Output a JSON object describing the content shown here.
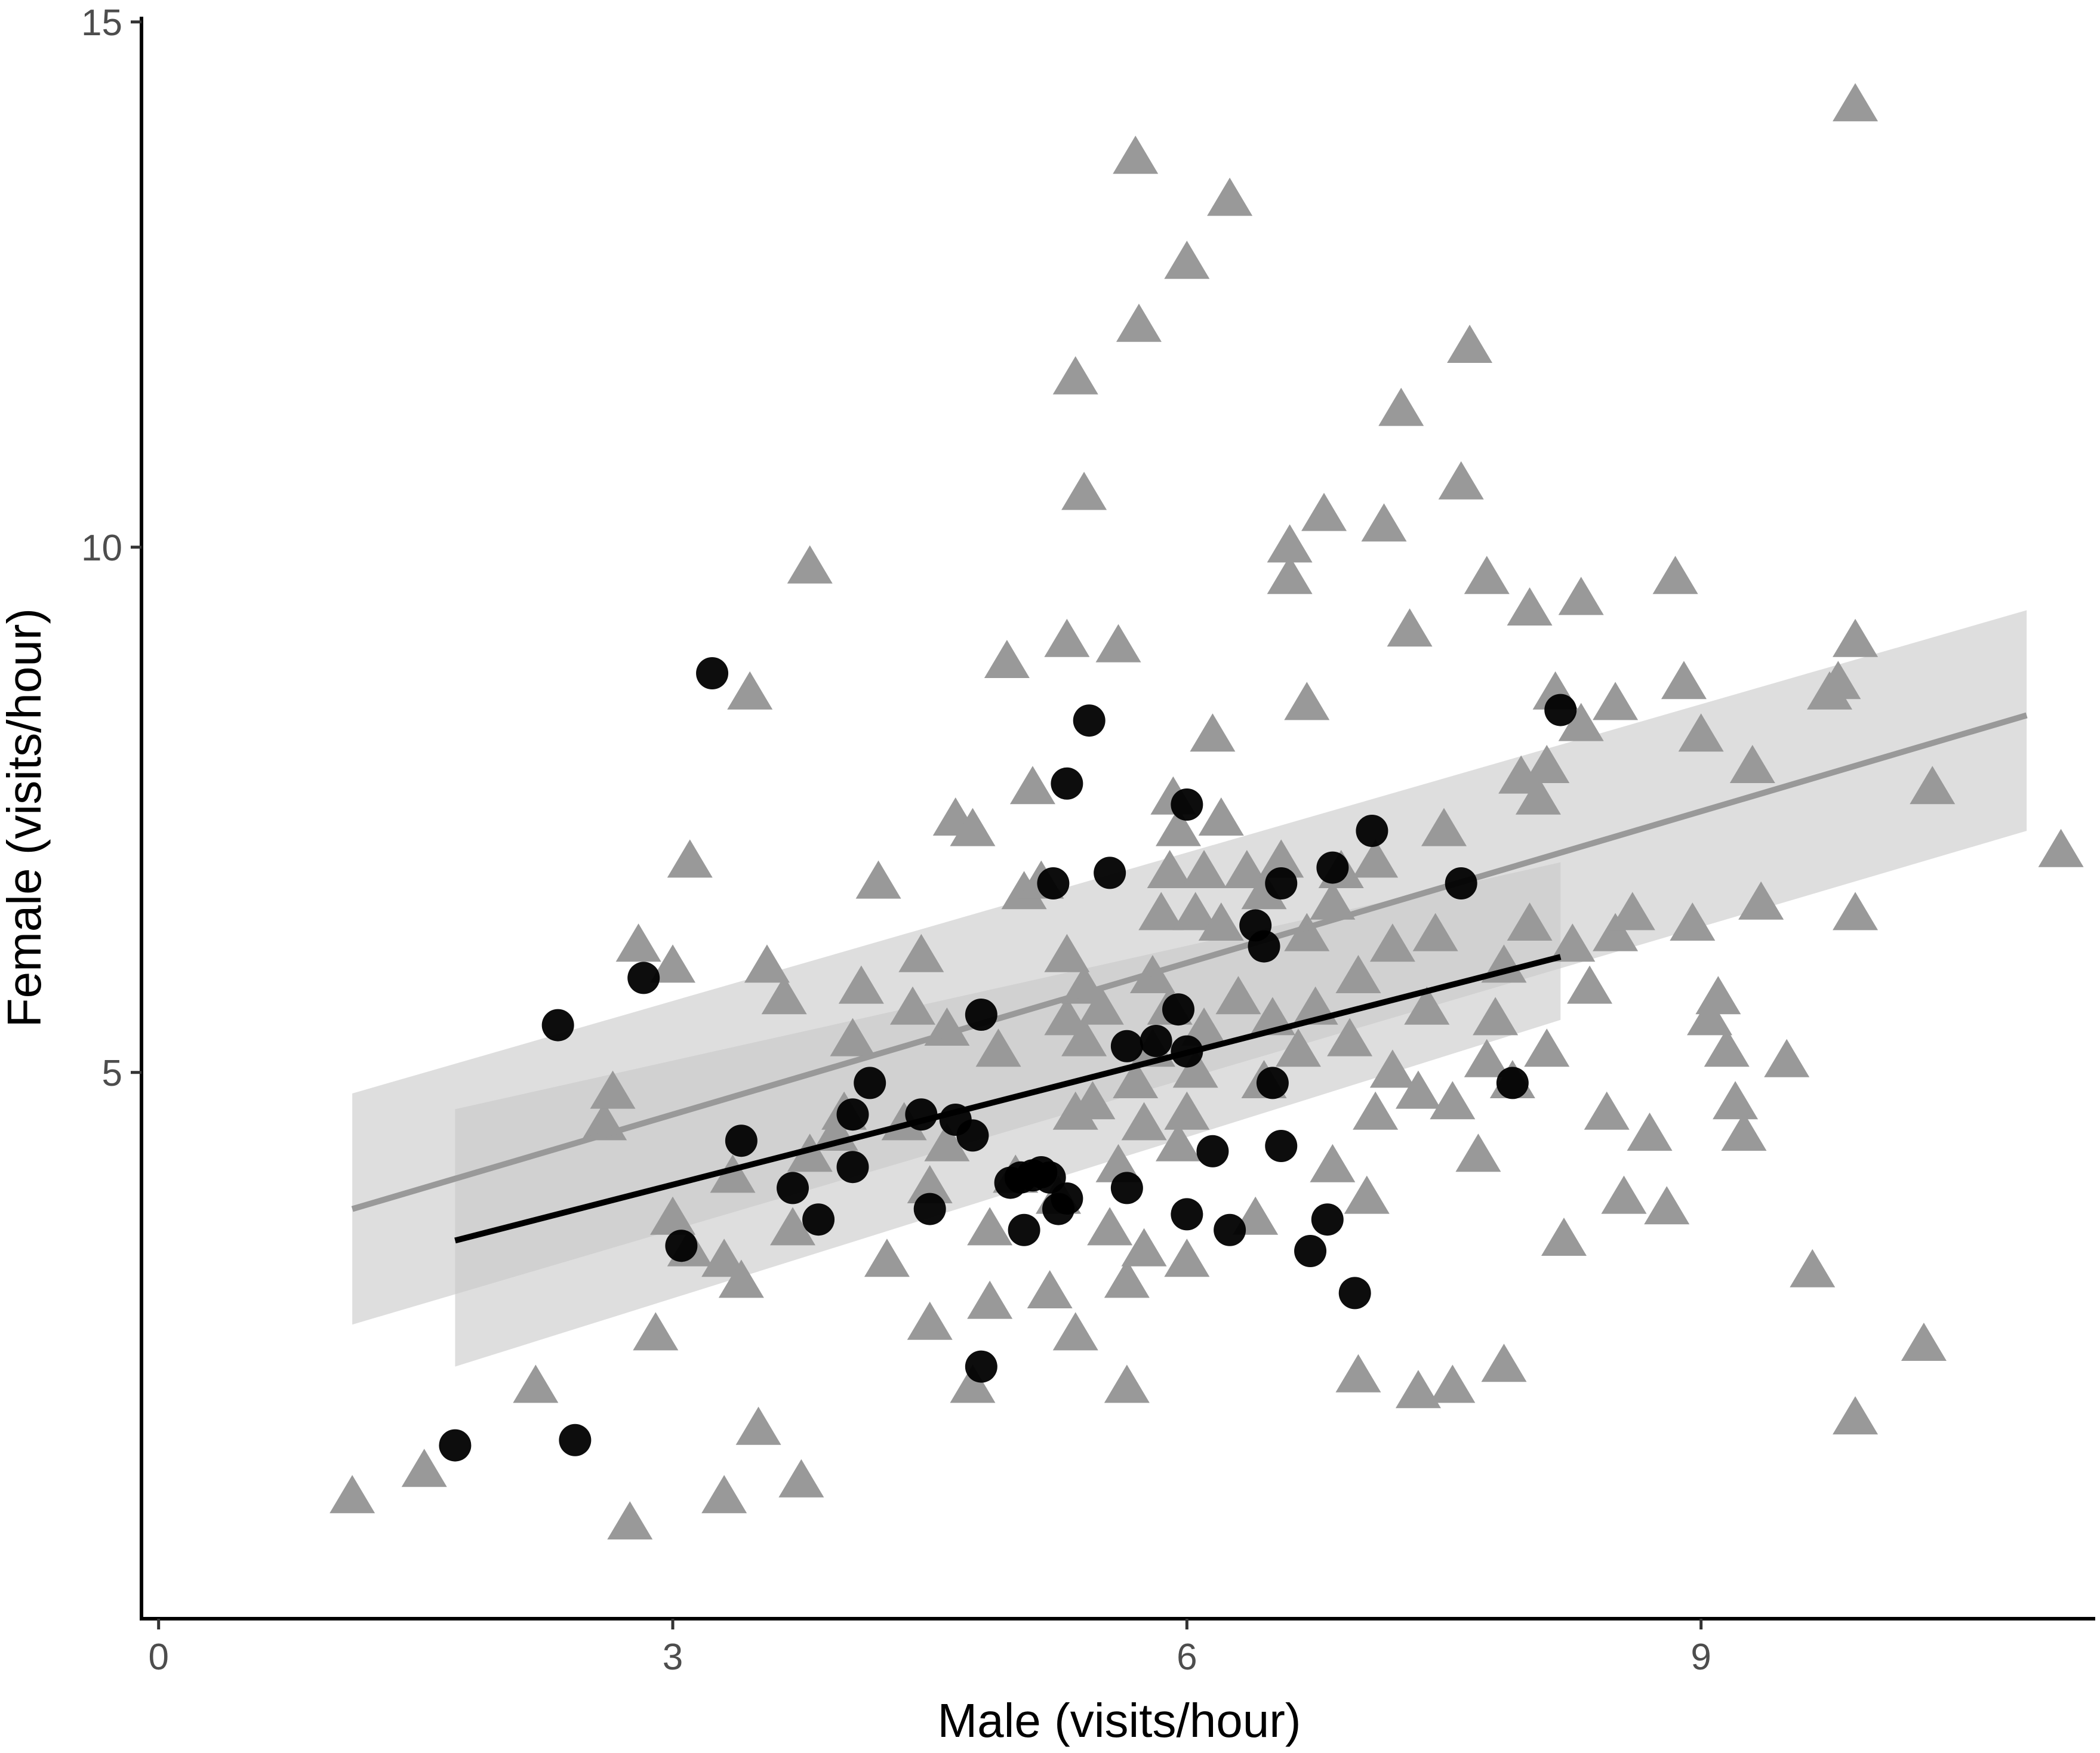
{
  "chart_data": {
    "type": "scatter",
    "title": "",
    "xlabel": "Male (visits/hour)",
    "ylabel": "Female (visits/hour)",
    "xlim": [
      -0.1,
      11.3
    ],
    "ylim": [
      -0.2,
      15.05
    ],
    "x_ticks": [
      0,
      3,
      6,
      9
    ],
    "y_ticks": [
      5,
      10,
      15
    ],
    "grid": false,
    "legend": "none",
    "colors": {
      "triangles": "#999999",
      "circles": "#000000",
      "triangle_fit": "#999999",
      "circle_fit": "#000000",
      "ribbon": "#c8c8c8"
    },
    "series": [
      {
        "marker": "triangle",
        "color": "#999999",
        "points": [
          [
            1.13,
            0.95
          ],
          [
            1.55,
            1.2
          ],
          [
            2.2,
            2.0
          ],
          [
            2.75,
            0.7
          ],
          [
            3.3,
            0.95
          ],
          [
            3.75,
            1.1
          ],
          [
            3.5,
            1.6
          ],
          [
            2.9,
            2.5
          ],
          [
            3.0,
            3.6
          ],
          [
            3.1,
            3.3
          ],
          [
            3.3,
            3.2
          ],
          [
            3.4,
            3.0
          ],
          [
            3.35,
            4.0
          ],
          [
            2.6,
            4.5
          ],
          [
            2.65,
            4.8
          ],
          [
            2.8,
            6.2
          ],
          [
            3.0,
            6.0
          ],
          [
            3.1,
            7.0
          ],
          [
            3.45,
            8.6
          ],
          [
            3.55,
            6.0
          ],
          [
            3.65,
            5.7
          ],
          [
            3.8,
            9.8
          ],
          [
            3.7,
            3.5
          ],
          [
            3.8,
            4.2
          ],
          [
            3.95,
            4.4
          ],
          [
            4.0,
            4.6
          ],
          [
            4.05,
            5.3
          ],
          [
            4.1,
            5.8
          ],
          [
            4.2,
            6.8
          ],
          [
            4.25,
            3.2
          ],
          [
            4.35,
            4.5
          ],
          [
            4.4,
            5.6
          ],
          [
            4.45,
            6.1
          ],
          [
            4.5,
            2.6
          ],
          [
            4.5,
            3.9
          ],
          [
            4.6,
            4.3
          ],
          [
            4.6,
            5.4
          ],
          [
            4.65,
            7.4
          ],
          [
            4.75,
            2.0
          ],
          [
            4.75,
            7.3
          ],
          [
            4.85,
            2.8
          ],
          [
            4.85,
            3.5
          ],
          [
            4.9,
            5.2
          ],
          [
            4.95,
            8.9
          ],
          [
            5.0,
            4.0
          ],
          [
            5.05,
            6.7
          ],
          [
            5.1,
            7.7
          ],
          [
            5.15,
            6.8
          ],
          [
            5.2,
            2.9
          ],
          [
            5.25,
            3.8
          ],
          [
            5.3,
            5.5
          ],
          [
            5.3,
            6.1
          ],
          [
            5.3,
            9.1
          ],
          [
            5.35,
            11.6
          ],
          [
            5.35,
            2.5
          ],
          [
            5.35,
            4.6
          ],
          [
            5.4,
            5.3
          ],
          [
            5.4,
            5.8
          ],
          [
            5.4,
            10.5
          ],
          [
            5.45,
            4.7
          ],
          [
            5.5,
            5.6
          ],
          [
            5.55,
            3.5
          ],
          [
            5.6,
            4.1
          ],
          [
            5.6,
            9.05
          ],
          [
            5.65,
            2.0
          ],
          [
            5.65,
            3.0
          ],
          [
            5.7,
            4.9
          ],
          [
            5.7,
            13.7
          ],
          [
            5.72,
            12.1
          ],
          [
            5.75,
            3.3
          ],
          [
            5.75,
            4.5
          ],
          [
            5.8,
            5.2
          ],
          [
            5.8,
            5.9
          ],
          [
            5.85,
            6.5
          ],
          [
            5.9,
            5.6
          ],
          [
            5.9,
            6.9
          ],
          [
            5.92,
            7.6
          ],
          [
            5.95,
            4.3
          ],
          [
            5.95,
            7.3
          ],
          [
            6.0,
            3.2
          ],
          [
            6.0,
            4.6
          ],
          [
            6.0,
            12.7
          ],
          [
            6.05,
            5.0
          ],
          [
            6.05,
            6.5
          ],
          [
            6.1,
            5.4
          ],
          [
            6.1,
            6.9
          ],
          [
            6.15,
            8.2
          ],
          [
            6.2,
            7.4
          ],
          [
            6.2,
            6.4
          ],
          [
            6.25,
            13.3
          ],
          [
            6.3,
            5.7
          ],
          [
            6.35,
            6.9
          ],
          [
            6.4,
            3.6
          ],
          [
            6.45,
            4.9
          ],
          [
            6.45,
            6.7
          ],
          [
            6.5,
            5.5
          ],
          [
            6.55,
            7.0
          ],
          [
            6.6,
            10.0
          ],
          [
            6.6,
            9.7
          ],
          [
            6.65,
            5.2
          ],
          [
            6.7,
            8.5
          ],
          [
            6.7,
            6.3
          ],
          [
            6.75,
            5.6
          ],
          [
            6.8,
            10.3
          ],
          [
            6.85,
            4.1
          ],
          [
            6.85,
            6.6
          ],
          [
            6.9,
            6.9
          ],
          [
            6.95,
            5.3
          ],
          [
            7.0,
            2.1
          ],
          [
            7.0,
            5.9
          ],
          [
            7.05,
            3.8
          ],
          [
            7.1,
            4.6
          ],
          [
            7.1,
            7.0
          ],
          [
            7.15,
            10.2
          ],
          [
            7.2,
            5.0
          ],
          [
            7.2,
            6.2
          ],
          [
            7.25,
            11.3
          ],
          [
            7.3,
            9.2
          ],
          [
            7.35,
            1.95
          ],
          [
            7.35,
            4.8
          ],
          [
            7.4,
            5.6
          ],
          [
            7.45,
            6.3
          ],
          [
            7.5,
            7.3
          ],
          [
            7.55,
            2.0
          ],
          [
            7.55,
            4.7
          ],
          [
            7.6,
            10.6
          ],
          [
            7.65,
            11.9
          ],
          [
            7.7,
            4.2
          ],
          [
            7.75,
            5.1
          ],
          [
            7.75,
            9.7
          ],
          [
            7.8,
            5.5
          ],
          [
            7.85,
            2.2
          ],
          [
            7.85,
            6.0
          ],
          [
            7.9,
            4.9
          ],
          [
            7.95,
            7.8
          ],
          [
            8.0,
            6.4
          ],
          [
            8.0,
            9.4
          ],
          [
            8.05,
            7.6
          ],
          [
            8.1,
            5.2
          ],
          [
            8.1,
            7.9
          ],
          [
            8.15,
            8.6
          ],
          [
            8.2,
            3.4
          ],
          [
            8.25,
            6.2
          ],
          [
            8.3,
            8.3
          ],
          [
            8.3,
            9.5
          ],
          [
            8.35,
            5.8
          ],
          [
            8.45,
            4.6
          ],
          [
            8.5,
            6.3
          ],
          [
            8.5,
            8.5
          ],
          [
            8.55,
            3.8
          ],
          [
            8.6,
            6.5
          ],
          [
            8.7,
            4.4
          ],
          [
            8.8,
            3.7
          ],
          [
            8.85,
            9.7
          ],
          [
            8.9,
            8.7
          ],
          [
            8.95,
            6.4
          ],
          [
            9.0,
            8.2
          ],
          [
            9.05,
            5.5
          ],
          [
            9.1,
            5.7
          ],
          [
            9.15,
            5.2
          ],
          [
            9.2,
            4.7
          ],
          [
            9.25,
            4.4
          ],
          [
            9.3,
            7.9
          ],
          [
            9.35,
            6.6
          ],
          [
            9.5,
            5.1
          ],
          [
            9.65,
            3.1
          ],
          [
            9.75,
            8.6
          ],
          [
            9.8,
            8.7
          ],
          [
            9.9,
            6.5
          ],
          [
            9.9,
            1.7
          ],
          [
            9.9,
            9.1
          ],
          [
            9.9,
            14.2
          ],
          [
            10.3,
            2.4
          ],
          [
            10.35,
            7.7
          ],
          [
            11.1,
            7.1
          ]
        ]
      },
      {
        "marker": "circle",
        "color": "#000000",
        "points": [
          [
            1.73,
            1.45
          ],
          [
            2.43,
            1.5
          ],
          [
            2.33,
            5.45
          ],
          [
            2.83,
            5.9
          ],
          [
            3.23,
            8.8
          ],
          [
            3.05,
            3.35
          ],
          [
            3.4,
            4.35
          ],
          [
            3.7,
            3.9
          ],
          [
            3.85,
            3.6
          ],
          [
            4.05,
            4.1
          ],
          [
            4.05,
            4.6
          ],
          [
            4.15,
            4.9
          ],
          [
            4.45,
            4.6
          ],
          [
            4.5,
            3.7
          ],
          [
            4.65,
            4.55
          ],
          [
            4.75,
            4.4
          ],
          [
            4.8,
            5.55
          ],
          [
            4.8,
            2.2
          ],
          [
            4.97,
            3.95
          ],
          [
            5.03,
            4.0
          ],
          [
            5.1,
            4.02
          ],
          [
            5.15,
            4.05
          ],
          [
            5.2,
            4.0
          ],
          [
            5.05,
            3.5
          ],
          [
            5.25,
            3.7
          ],
          [
            5.3,
            3.8
          ],
          [
            5.22,
            6.8
          ],
          [
            5.3,
            7.75
          ],
          [
            5.43,
            8.35
          ],
          [
            5.55,
            6.9
          ],
          [
            5.65,
            3.9
          ],
          [
            5.65,
            5.25
          ],
          [
            5.82,
            5.3
          ],
          [
            5.95,
            5.6
          ],
          [
            6.0,
            5.2
          ],
          [
            6.0,
            3.65
          ],
          [
            6.0,
            7.55
          ],
          [
            6.15,
            4.25
          ],
          [
            6.25,
            3.5
          ],
          [
            6.4,
            6.4
          ],
          [
            6.45,
            6.2
          ],
          [
            6.5,
            4.9
          ],
          [
            6.55,
            4.3
          ],
          [
            6.55,
            6.8
          ],
          [
            6.72,
            3.3
          ],
          [
            6.82,
            3.6
          ],
          [
            6.85,
            6.95
          ],
          [
            6.98,
            2.9
          ],
          [
            7.08,
            7.3
          ],
          [
            7.6,
            6.8
          ],
          [
            7.9,
            4.9
          ],
          [
            8.18,
            8.45
          ]
        ]
      }
    ],
    "fits": [
      {
        "for": "triangle",
        "color": "#999999",
        "x": [
          1.13,
          10.9
        ],
        "y": [
          3.7,
          8.4
        ],
        "ci_low": [
          2.6,
          7.3
        ],
        "ci_high": [
          4.8,
          9.4
        ]
      },
      {
        "for": "circle",
        "color": "#000000",
        "x": [
          1.73,
          8.18
        ],
        "y": [
          3.4,
          6.1
        ],
        "ci_low": [
          2.2,
          5.5
        ],
        "ci_high": [
          4.65,
          7.0
        ]
      }
    ]
  }
}
